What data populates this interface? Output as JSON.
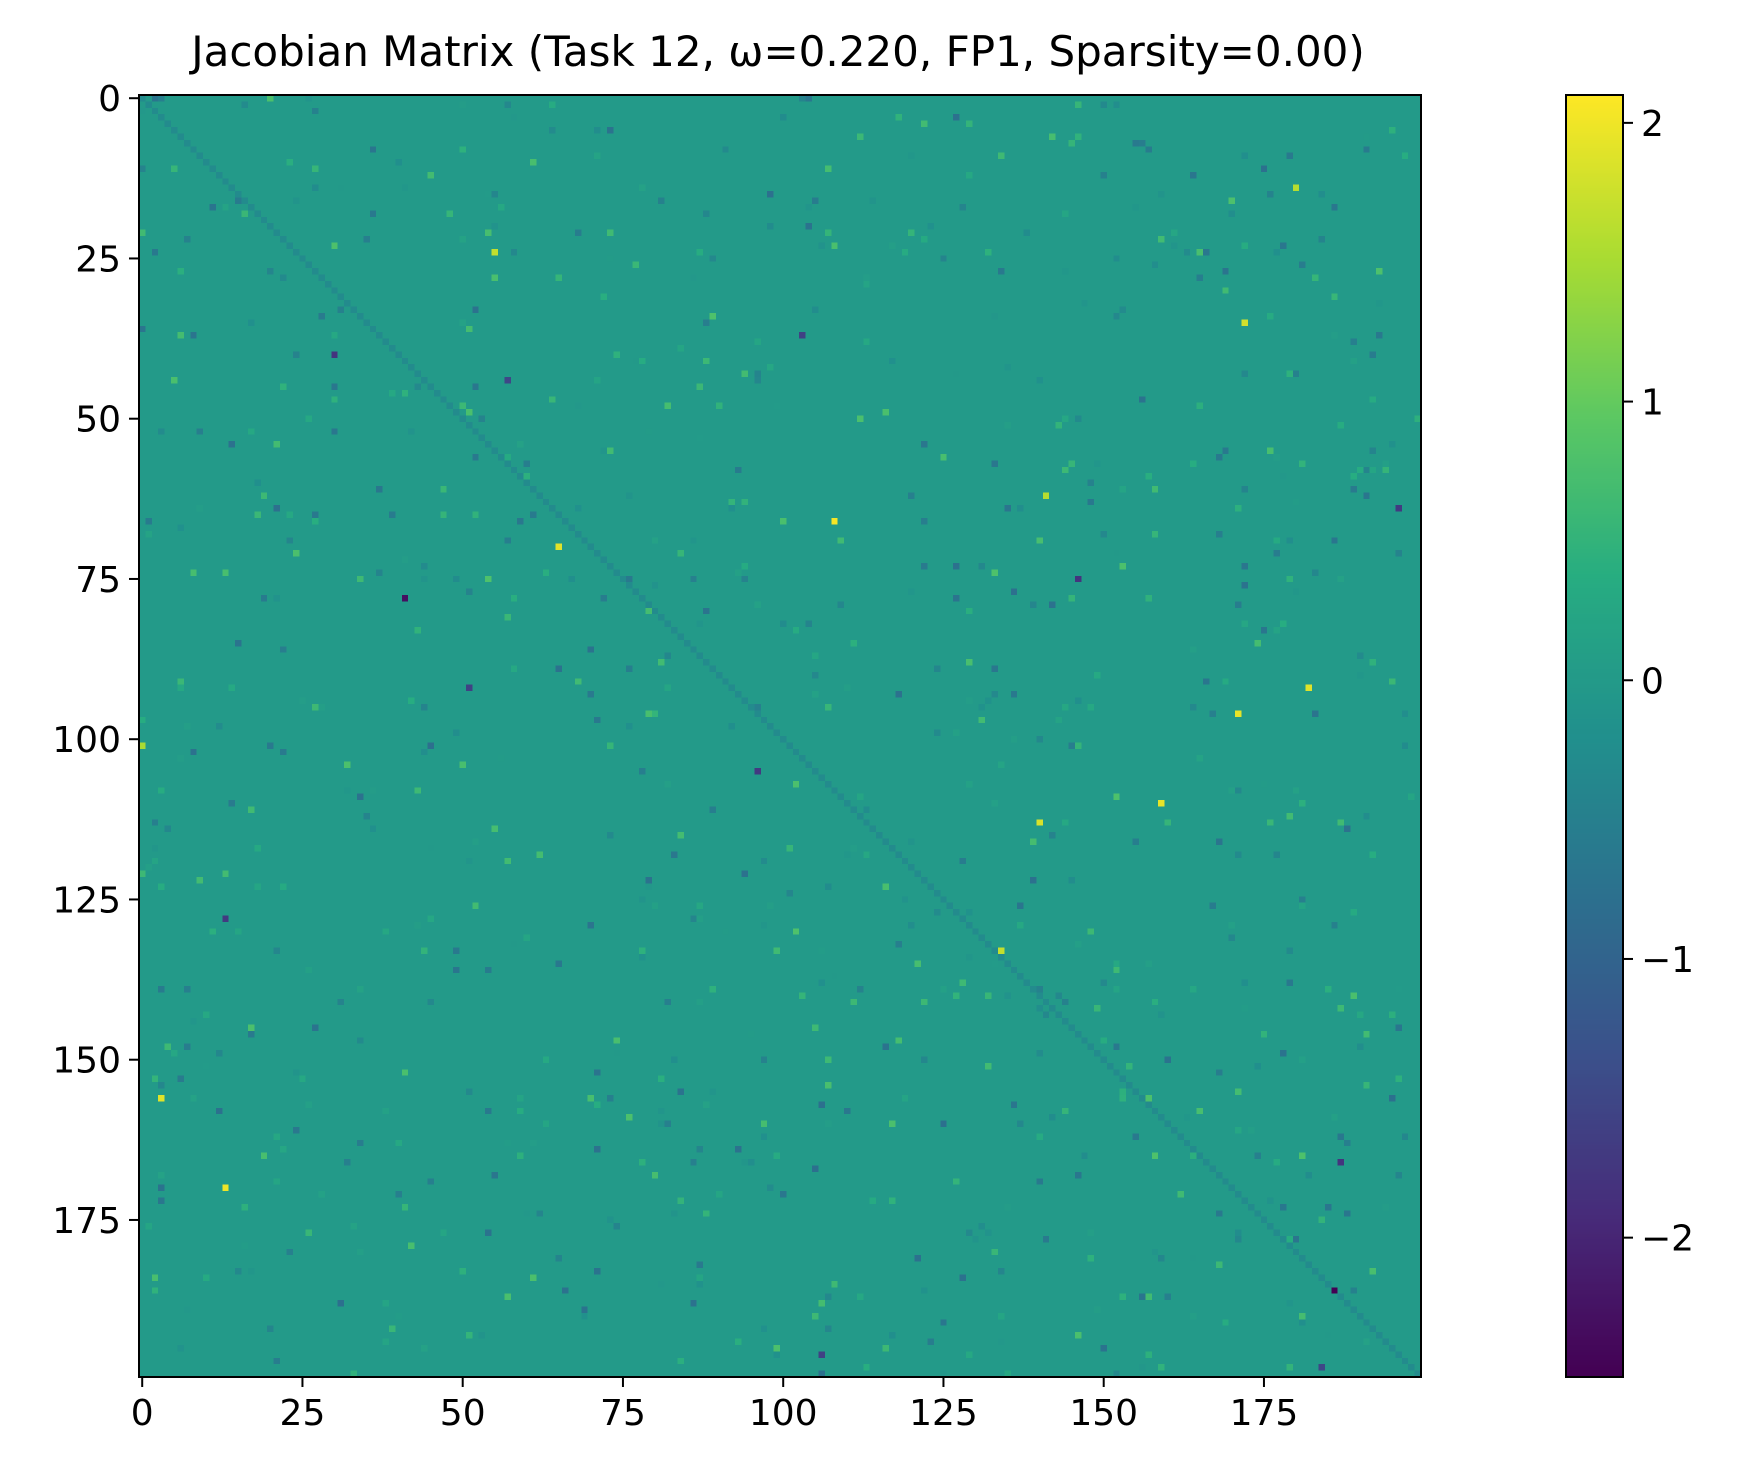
{
  "chart_data": {
    "type": "heatmap",
    "title": "Jacobian Matrix (Task 12, ω=0.220, FP1, Sparsity=0.00)",
    "xlabel": "",
    "ylabel": "",
    "rows": 200,
    "cols": 200,
    "xlim": [
      0,
      199
    ],
    "ylim": [
      0,
      199
    ],
    "x_ticks": [
      0,
      25,
      50,
      75,
      100,
      125,
      150,
      175
    ],
    "y_ticks": [
      0,
      25,
      50,
      75,
      100,
      125,
      150,
      175
    ],
    "colormap": "viridis",
    "vmin": -2.5,
    "vmax": 2.1,
    "colorbar_ticks": [
      2,
      1,
      0,
      -1,
      -2
    ],
    "colorbar_tick_labels": [
      "2",
      "1",
      "0",
      "−1",
      "−2"
    ],
    "background_value": 0.0,
    "diagonal_value": -0.3,
    "notable_entries": [
      {
        "row": 186,
        "col": 186,
        "value": -2.5
      },
      {
        "row": 78,
        "col": 41,
        "value": -2.3
      },
      {
        "row": 66,
        "col": 108,
        "value": 2.05
      },
      {
        "row": 70,
        "col": 65,
        "value": 1.9
      },
      {
        "row": 96,
        "col": 171,
        "value": 1.95
      },
      {
        "row": 92,
        "col": 182,
        "value": 1.9
      },
      {
        "row": 156,
        "col": 3,
        "value": 1.9
      },
      {
        "row": 170,
        "col": 13,
        "value": 2.0
      },
      {
        "row": 110,
        "col": 159,
        "value": 1.95
      },
      {
        "row": 113,
        "col": 140,
        "value": 1.85
      },
      {
        "row": 35,
        "col": 172,
        "value": 1.8
      },
      {
        "row": 24,
        "col": 55,
        "value": 1.7
      },
      {
        "row": 133,
        "col": 134,
        "value": 1.7
      },
      {
        "row": 14,
        "col": 180,
        "value": 1.6
      },
      {
        "row": 62,
        "col": 141,
        "value": 1.6
      },
      {
        "row": 101,
        "col": 0,
        "value": 1.5
      },
      {
        "row": 166,
        "col": 187,
        "value": -1.8
      },
      {
        "row": 64,
        "col": 196,
        "value": -1.7
      },
      {
        "row": 75,
        "col": 146,
        "value": -1.8
      },
      {
        "row": 105,
        "col": 96,
        "value": -1.7
      },
      {
        "row": 92,
        "col": 51,
        "value": -1.6
      },
      {
        "row": 37,
        "col": 103,
        "value": -1.6
      },
      {
        "row": 40,
        "col": 30,
        "value": -1.8
      },
      {
        "row": 128,
        "col": 13,
        "value": -1.7
      },
      {
        "row": 44,
        "col": 57,
        "value": -1.5
      },
      {
        "row": 196,
        "col": 106,
        "value": -1.6
      },
      {
        "row": 198,
        "col": 184,
        "value": -1.5
      }
    ]
  }
}
